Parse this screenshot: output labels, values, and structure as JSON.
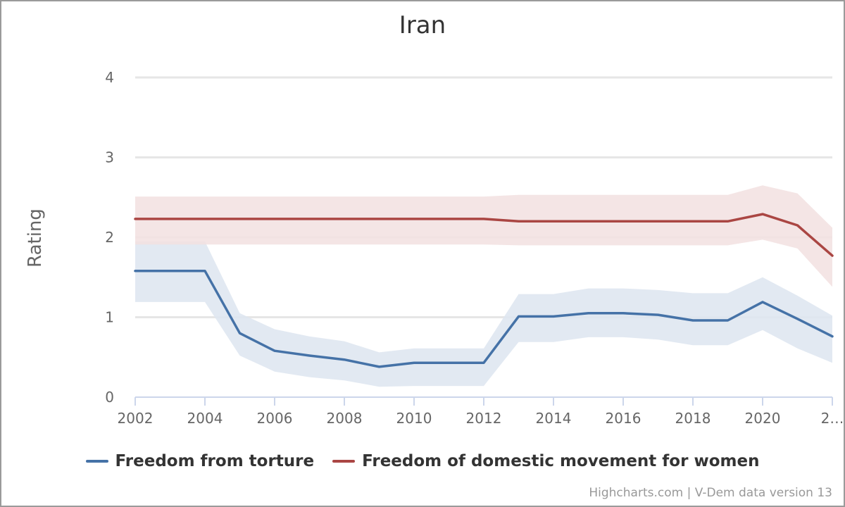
{
  "chart_data": {
    "type": "line",
    "title": "Iran",
    "xlabel": "",
    "ylabel": "Rating",
    "xlim": [
      2002,
      2022
    ],
    "ylim": [
      0,
      4
    ],
    "grid": true,
    "legend_position": "bottom",
    "x_ticks": [
      "2002",
      "2004",
      "2006",
      "2008",
      "2010",
      "2012",
      "2014",
      "2016",
      "2018",
      "2020",
      "2…"
    ],
    "y_ticks": [
      "0",
      "1",
      "2",
      "3",
      "4"
    ],
    "x": [
      2002,
      2003,
      2004,
      2005,
      2006,
      2007,
      2008,
      2009,
      2010,
      2011,
      2012,
      2013,
      2014,
      2015,
      2016,
      2017,
      2018,
      2019,
      2020,
      2021,
      2022
    ],
    "series": [
      {
        "name": "Freedom from torture",
        "color": "#4572a7",
        "band_color": "#dde5f0",
        "values": [
          1.58,
          1.58,
          1.58,
          0.8,
          0.58,
          0.52,
          0.47,
          0.38,
          0.43,
          0.43,
          0.43,
          1.01,
          1.01,
          1.05,
          1.05,
          1.03,
          0.96,
          0.96,
          1.19,
          0.98,
          0.76
        ],
        "upper": [
          1.95,
          1.95,
          1.95,
          1.05,
          0.85,
          0.76,
          0.7,
          0.56,
          0.61,
          0.61,
          0.61,
          1.29,
          1.29,
          1.36,
          1.36,
          1.34,
          1.3,
          1.3,
          1.5,
          1.27,
          1.02
        ],
        "lower": [
          1.19,
          1.19,
          1.19,
          0.52,
          0.32,
          0.25,
          0.21,
          0.13,
          0.14,
          0.14,
          0.14,
          0.69,
          0.69,
          0.75,
          0.75,
          0.72,
          0.65,
          0.65,
          0.84,
          0.61,
          0.43
        ]
      },
      {
        "name": "Freedom of domestic movement for women",
        "color": "#aa4643",
        "band_color": "#f2e0e0",
        "values": [
          2.23,
          2.23,
          2.23,
          2.23,
          2.23,
          2.23,
          2.23,
          2.23,
          2.23,
          2.23,
          2.23,
          2.2,
          2.2,
          2.2,
          2.2,
          2.2,
          2.2,
          2.2,
          2.29,
          2.15,
          1.77
        ],
        "upper": [
          2.51,
          2.51,
          2.51,
          2.51,
          2.51,
          2.51,
          2.51,
          2.51,
          2.51,
          2.51,
          2.51,
          2.53,
          2.53,
          2.53,
          2.53,
          2.53,
          2.53,
          2.53,
          2.65,
          2.55,
          2.12
        ],
        "lower": [
          1.91,
          1.91,
          1.91,
          1.91,
          1.91,
          1.91,
          1.91,
          1.91,
          1.91,
          1.91,
          1.91,
          1.9,
          1.9,
          1.9,
          1.9,
          1.9,
          1.9,
          1.9,
          1.97,
          1.86,
          1.38
        ]
      }
    ]
  },
  "credits": "Highcharts.com | V-Dem data version 13"
}
